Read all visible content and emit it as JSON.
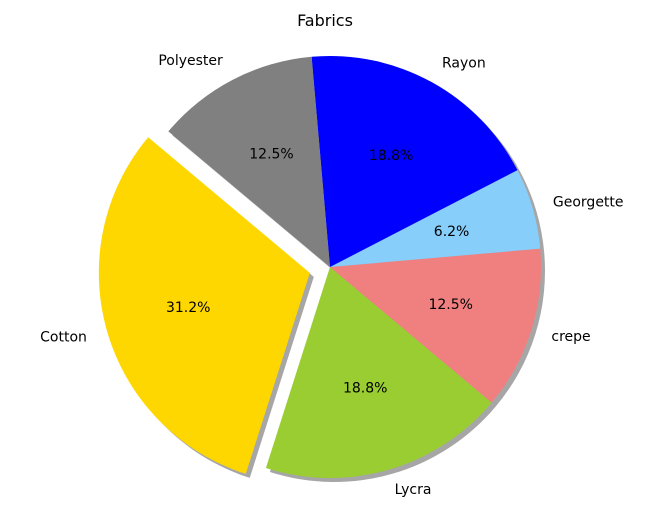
{
  "chart_data": {
    "type": "pie",
    "title": "Fabrics",
    "start_angle_deg": 140,
    "direction": "counterclockwise",
    "shadow": true,
    "autopct_format": "%1.1f%%",
    "slices": [
      {
        "label": "Cotton",
        "value": 31.2,
        "pct_text": "31.2%",
        "color": "#FFD700",
        "explode": true
      },
      {
        "label": "Lycra",
        "value": 18.8,
        "pct_text": "18.8%",
        "color": "#9ACD32",
        "explode": false
      },
      {
        "label": "crepe",
        "value": 12.5,
        "pct_text": "12.5%",
        "color": "#F08080",
        "explode": false
      },
      {
        "label": "Georgette",
        "value": 6.2,
        "pct_text": "6.2%",
        "color": "#87CEFA",
        "explode": false
      },
      {
        "label": "Rayon",
        "value": 18.8,
        "pct_text": "18.8%",
        "color": "#0000FF",
        "explode": false
      },
      {
        "label": "Polyester",
        "value": 12.5,
        "pct_text": "12.5%",
        "color": "#808080",
        "explode": false
      }
    ]
  }
}
